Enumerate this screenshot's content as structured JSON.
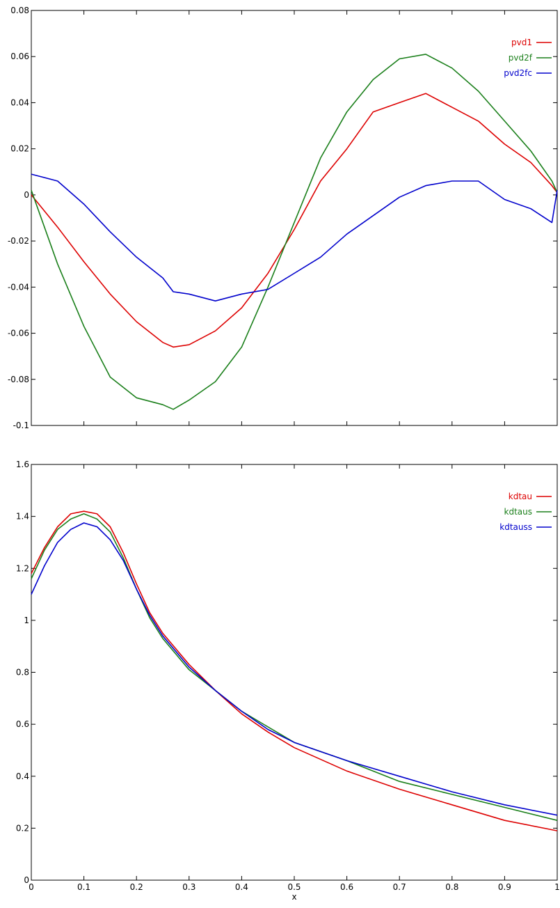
{
  "chart_data": [
    {
      "type": "line",
      "title": "",
      "xlabel": "",
      "ylabel": "",
      "xlim": [
        0,
        1
      ],
      "ylim": [
        -0.1,
        0.08
      ],
      "grid": false,
      "legend_position": "top-right",
      "x_ticks": [
        "0",
        "0.1",
        "0.2",
        "0.3",
        "0.4",
        "0.5",
        "0.6",
        "0.7",
        "0.8",
        "0.9",
        "1"
      ],
      "y_ticks": [
        "-0.1",
        "-0.08",
        "-0.06",
        "-0.04",
        "-0.02",
        "0",
        "0.02",
        "0.04",
        "0.06",
        "0.08"
      ],
      "x": [
        0,
        0.05,
        0.1,
        0.15,
        0.2,
        0.25,
        0.27,
        0.3,
        0.35,
        0.4,
        0.45,
        0.5,
        0.55,
        0.6,
        0.65,
        0.7,
        0.75,
        0.8,
        0.85,
        0.9,
        0.95,
        0.99,
        1.0
      ],
      "series": [
        {
          "name": "pvd1",
          "color": "#dd0000",
          "values": [
            0,
            -0.014,
            -0.029,
            -0.043,
            -0.055,
            -0.064,
            -0.066,
            -0.065,
            -0.059,
            -0.049,
            -0.034,
            -0.015,
            0.006,
            0.02,
            0.036,
            0.04,
            0.044,
            0.038,
            0.032,
            0.022,
            0.014,
            0.004,
            0.001
          ]
        },
        {
          "name": "pvd2f",
          "color": "#1a7f1a",
          "values": [
            0.002,
            -0.03,
            -0.057,
            -0.079,
            -0.088,
            -0.091,
            -0.093,
            -0.089,
            -0.081,
            -0.066,
            -0.04,
            -0.012,
            0.016,
            0.036,
            0.05,
            0.059,
            0.061,
            0.055,
            0.045,
            0.032,
            0.019,
            0.006,
            0.001
          ]
        },
        {
          "name": "pvd2fc",
          "color": "#0000cc",
          "values": [
            0.009,
            0.006,
            -0.004,
            -0.016,
            -0.027,
            -0.036,
            -0.042,
            -0.043,
            -0.046,
            -0.043,
            -0.041,
            -0.034,
            -0.027,
            -0.017,
            -0.009,
            -0.001,
            0.004,
            0.006,
            0.006,
            -0.002,
            -0.006,
            -0.012,
            0.002
          ]
        }
      ]
    },
    {
      "type": "line",
      "title": "",
      "xlabel": "x",
      "ylabel": "",
      "xlim": [
        0,
        1
      ],
      "ylim": [
        0,
        1.6
      ],
      "grid": false,
      "legend_position": "top-right",
      "x_ticks": [
        "0",
        "0.1",
        "0.2",
        "0.3",
        "0.4",
        "0.5",
        "0.6",
        "0.7",
        "0.8",
        "0.9",
        "1"
      ],
      "y_ticks": [
        "0",
        "0.2",
        "0.4",
        "0.6",
        "0.8",
        "1",
        "1.2",
        "1.4",
        "1.6"
      ],
      "x": [
        0,
        0.025,
        0.05,
        0.075,
        0.1,
        0.125,
        0.15,
        0.175,
        0.2,
        0.225,
        0.25,
        0.3,
        0.35,
        0.4,
        0.45,
        0.5,
        0.6,
        0.7,
        0.8,
        0.9,
        1.0
      ],
      "series": [
        {
          "name": "kdtau",
          "color": "#dd0000",
          "values": [
            1.18,
            1.28,
            1.36,
            1.41,
            1.42,
            1.41,
            1.36,
            1.26,
            1.14,
            1.03,
            0.95,
            0.83,
            0.73,
            0.64,
            0.57,
            0.51,
            0.42,
            0.35,
            0.29,
            0.23,
            0.19
          ]
        },
        {
          "name": "kdtaus",
          "color": "#1a7f1a",
          "values": [
            1.16,
            1.27,
            1.35,
            1.39,
            1.41,
            1.39,
            1.34,
            1.24,
            1.12,
            1.01,
            0.93,
            0.81,
            0.73,
            0.65,
            0.59,
            0.53,
            0.46,
            0.38,
            0.33,
            0.28,
            0.23
          ]
        },
        {
          "name": "kdtauss",
          "color": "#0000cc",
          "values": [
            1.1,
            1.21,
            1.3,
            1.35,
            1.375,
            1.36,
            1.31,
            1.23,
            1.12,
            1.02,
            0.94,
            0.82,
            0.73,
            0.65,
            0.58,
            0.53,
            0.46,
            0.4,
            0.34,
            0.29,
            0.25
          ]
        }
      ]
    }
  ]
}
